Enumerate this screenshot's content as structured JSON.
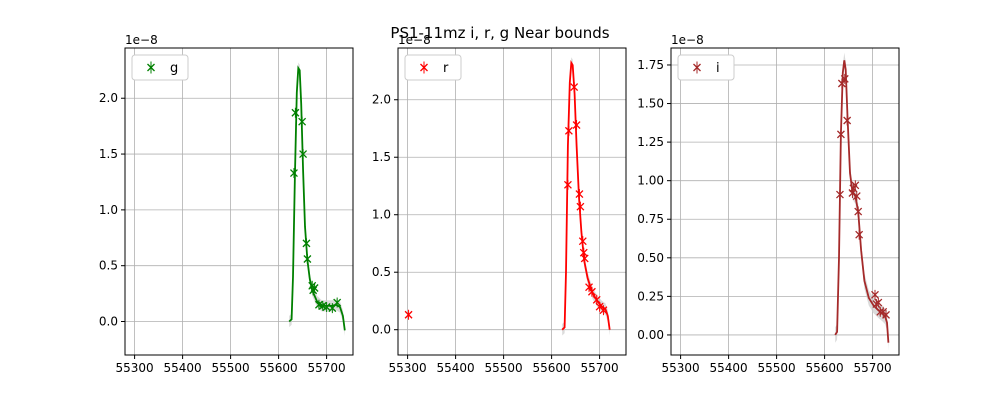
{
  "title": "PS1-11mz  i, r, g Near bounds",
  "chart_data": [
    {
      "type": "scatter",
      "band": "g",
      "legend": "g",
      "color": "#008000",
      "offset_label": "1e−8",
      "xlim": [
        55280,
        55755
      ],
      "ylim": [
        -0.3,
        2.45
      ],
      "xticks": [
        55300,
        55400,
        55500,
        55600,
        55700
      ],
      "yticks": [
        0.0,
        0.5,
        1.0,
        1.5,
        2.0
      ],
      "ytick_labels": [
        "0.0",
        "0.5",
        "1.0",
        "1.5",
        "2.0"
      ],
      "legend_position": "upper-left",
      "grid": true,
      "points": [
        {
          "x": 55632,
          "y": 1.33
        },
        {
          "x": 55635,
          "y": 1.87
        },
        {
          "x": 55649,
          "y": 1.79
        },
        {
          "x": 55651,
          "y": 1.5
        },
        {
          "x": 55658,
          "y": 0.7
        },
        {
          "x": 55660,
          "y": 0.56
        },
        {
          "x": 55670,
          "y": 0.32
        },
        {
          "x": 55672,
          "y": 0.28
        },
        {
          "x": 55675,
          "y": 0.3
        },
        {
          "x": 55684,
          "y": 0.15
        },
        {
          "x": 55692,
          "y": 0.14
        },
        {
          "x": 55700,
          "y": 0.13
        },
        {
          "x": 55712,
          "y": 0.12
        },
        {
          "x": 55722,
          "y": 0.17
        }
      ],
      "model": [
        [
          55622,
          0.0
        ],
        [
          55627,
          0.02
        ],
        [
          55630,
          0.4
        ],
        [
          55634,
          1.3
        ],
        [
          55638,
          2.05
        ],
        [
          55641,
          2.27
        ],
        [
          55644,
          2.25
        ],
        [
          55647,
          1.95
        ],
        [
          55651,
          1.35
        ],
        [
          55655,
          0.85
        ],
        [
          55660,
          0.55
        ],
        [
          55665,
          0.38
        ],
        [
          55670,
          0.28
        ],
        [
          55680,
          0.18
        ],
        [
          55690,
          0.14
        ],
        [
          55700,
          0.14
        ],
        [
          55710,
          0.14
        ],
        [
          55720,
          0.15
        ],
        [
          55728,
          0.13
        ],
        [
          55734,
          0.05
        ],
        [
          55738,
          -0.08
        ]
      ]
    },
    {
      "type": "scatter",
      "band": "r",
      "legend": "r",
      "color": "#ff0000",
      "offset_label": "1e−8",
      "xlim": [
        55280,
        55755
      ],
      "ylim": [
        -0.22,
        2.45
      ],
      "xticks": [
        55300,
        55400,
        55500,
        55600,
        55700
      ],
      "yticks": [
        0.0,
        0.5,
        1.0,
        1.5,
        2.0
      ],
      "ytick_labels": [
        "0.0",
        "0.5",
        "1.0",
        "1.5",
        "2.0"
      ],
      "legend_position": "upper-left",
      "grid": true,
      "points": [
        {
          "x": 55302,
          "y": 0.13
        },
        {
          "x": 55634,
          "y": 1.26
        },
        {
          "x": 55636,
          "y": 1.73
        },
        {
          "x": 55647,
          "y": 2.11
        },
        {
          "x": 55652,
          "y": 1.78
        },
        {
          "x": 55658,
          "y": 1.18
        },
        {
          "x": 55660,
          "y": 1.07
        },
        {
          "x": 55665,
          "y": 0.77
        },
        {
          "x": 55667,
          "y": 0.67
        },
        {
          "x": 55669,
          "y": 0.62
        },
        {
          "x": 55678,
          "y": 0.37
        },
        {
          "x": 55684,
          "y": 0.33
        },
        {
          "x": 55694,
          "y": 0.26
        },
        {
          "x": 55700,
          "y": 0.2
        },
        {
          "x": 55708,
          "y": 0.17
        }
      ],
      "model": [
        [
          55622,
          0.0
        ],
        [
          55627,
          0.02
        ],
        [
          55630,
          0.5
        ],
        [
          55634,
          1.6
        ],
        [
          55638,
          2.15
        ],
        [
          55641,
          2.32
        ],
        [
          55644,
          2.3
        ],
        [
          55648,
          2.05
        ],
        [
          55652,
          1.6
        ],
        [
          55657,
          1.15
        ],
        [
          55662,
          0.85
        ],
        [
          55668,
          0.6
        ],
        [
          55675,
          0.45
        ],
        [
          55685,
          0.32
        ],
        [
          55695,
          0.25
        ],
        [
          55705,
          0.2
        ],
        [
          55712,
          0.18
        ],
        [
          55717,
          0.12
        ],
        [
          55721,
          0.0
        ]
      ]
    },
    {
      "type": "scatter",
      "band": "i",
      "legend": "i",
      "color": "#a52a2a",
      "offset_label": "1e−8",
      "xlim": [
        55280,
        55755
      ],
      "ylim": [
        -0.13,
        1.86
      ],
      "xticks": [
        55300,
        55400,
        55500,
        55600,
        55700
      ],
      "yticks": [
        0.0,
        0.25,
        0.5,
        0.75,
        1.0,
        1.25,
        1.5,
        1.75
      ],
      "ytick_labels": [
        "0.00",
        "0.25",
        "0.50",
        "0.75",
        "1.00",
        "1.25",
        "1.50",
        "1.75"
      ],
      "legend_position": "upper-left",
      "grid": true,
      "points": [
        {
          "x": 55632,
          "y": 0.91
        },
        {
          "x": 55634,
          "y": 1.3
        },
        {
          "x": 55636,
          "y": 1.63
        },
        {
          "x": 55642,
          "y": 1.66
        },
        {
          "x": 55647,
          "y": 1.39
        },
        {
          "x": 55658,
          "y": 0.92
        },
        {
          "x": 55660,
          "y": 0.95
        },
        {
          "x": 55664,
          "y": 0.97
        },
        {
          "x": 55667,
          "y": 0.9
        },
        {
          "x": 55670,
          "y": 0.8
        },
        {
          "x": 55672,
          "y": 0.65
        },
        {
          "x": 55705,
          "y": 0.26
        },
        {
          "x": 55708,
          "y": 0.2
        },
        {
          "x": 55712,
          "y": 0.21
        },
        {
          "x": 55716,
          "y": 0.15
        },
        {
          "x": 55722,
          "y": 0.15
        },
        {
          "x": 55728,
          "y": 0.13
        }
      ],
      "model": [
        [
          55622,
          0.0
        ],
        [
          55626,
          0.02
        ],
        [
          55630,
          0.5
        ],
        [
          55634,
          1.3
        ],
        [
          55638,
          1.7
        ],
        [
          55641,
          1.78
        ],
        [
          55644,
          1.72
        ],
        [
          55648,
          1.4
        ],
        [
          55653,
          1.05
        ],
        [
          55658,
          0.93
        ],
        [
          55664,
          0.9
        ],
        [
          55670,
          0.8
        ],
        [
          55676,
          0.55
        ],
        [
          55683,
          0.35
        ],
        [
          55692,
          0.24
        ],
        [
          55702,
          0.19
        ],
        [
          55712,
          0.16
        ],
        [
          55720,
          0.14
        ],
        [
          55726,
          0.12
        ],
        [
          55730,
          0.08
        ],
        [
          55733,
          -0.05
        ]
      ]
    }
  ]
}
